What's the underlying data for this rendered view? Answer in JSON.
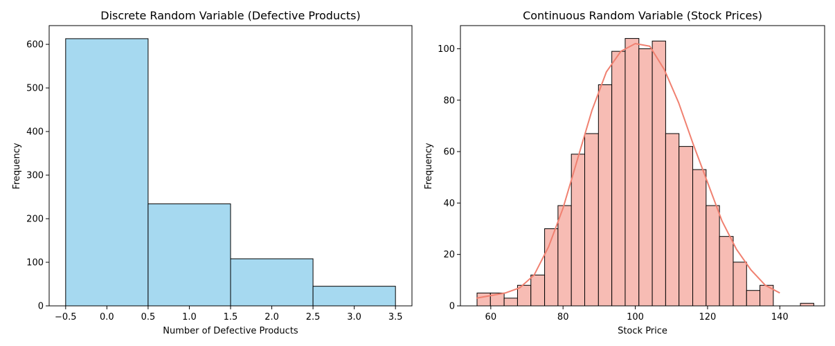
{
  "chart_data": [
    {
      "type": "bar",
      "title": "Discrete Random Variable (Defective Products)",
      "xlabel": "Number of Defective Products",
      "ylabel": "Frequency",
      "xlim": [
        -0.7,
        3.7
      ],
      "ylim": [
        0,
        643
      ],
      "x_ticks": [
        -0.5,
        0.0,
        0.5,
        1.0,
        1.5,
        2.0,
        2.5,
        3.0,
        3.5
      ],
      "x_tick_labels": [
        "−0.5",
        "0.0",
        "0.5",
        "1.0",
        "1.5",
        "2.0",
        "2.5",
        "3.0",
        "3.5"
      ],
      "y_ticks": [
        0,
        100,
        200,
        300,
        400,
        500,
        600
      ],
      "y_tick_labels": [
        "0",
        "100",
        "200",
        "300",
        "400",
        "500",
        "600"
      ],
      "bins": [
        {
          "left": -0.5,
          "right": 0.5,
          "value": 613
        },
        {
          "left": 0.5,
          "right": 1.5,
          "value": 234
        },
        {
          "left": 1.5,
          "right": 2.5,
          "value": 108
        },
        {
          "left": 2.5,
          "right": 3.5,
          "value": 45
        }
      ],
      "bar_color": "#a6d9f0",
      "edge_color": "#000000"
    },
    {
      "type": "bar",
      "title": "Continuous Random Variable (Stock Prices)",
      "xlabel": "Stock Price",
      "ylabel": "Frequency",
      "xlim": [
        51.6,
        152.4
      ],
      "ylim": [
        0,
        109
      ],
      "x_ticks": [
        60,
        80,
        100,
        120,
        140
      ],
      "x_tick_labels": [
        "60",
        "80",
        "100",
        "120",
        "140"
      ],
      "y_ticks": [
        0,
        20,
        40,
        60,
        80,
        100
      ],
      "y_tick_labels": [
        "0",
        "20",
        "40",
        "60",
        "80",
        "100"
      ],
      "bins": [
        {
          "left": 56.2,
          "right": 59.9,
          "value": 5
        },
        {
          "left": 59.9,
          "right": 63.7,
          "value": 5
        },
        {
          "left": 63.7,
          "right": 67.4,
          "value": 3
        },
        {
          "left": 67.4,
          "right": 71.1,
          "value": 8
        },
        {
          "left": 71.1,
          "right": 74.9,
          "value": 12
        },
        {
          "left": 74.9,
          "right": 78.6,
          "value": 30
        },
        {
          "left": 78.6,
          "right": 82.3,
          "value": 39
        },
        {
          "left": 82.3,
          "right": 86.0,
          "value": 59
        },
        {
          "left": 86.0,
          "right": 89.8,
          "value": 67
        },
        {
          "left": 89.8,
          "right": 93.5,
          "value": 86
        },
        {
          "left": 93.5,
          "right": 97.2,
          "value": 99
        },
        {
          "left": 97.2,
          "right": 101.0,
          "value": 104
        },
        {
          "left": 101.0,
          "right": 104.7,
          "value": 100
        },
        {
          "left": 104.7,
          "right": 108.4,
          "value": 103
        },
        {
          "left": 108.4,
          "right": 112.1,
          "value": 67
        },
        {
          "left": 112.1,
          "right": 115.9,
          "value": 62
        },
        {
          "left": 115.9,
          "right": 119.6,
          "value": 53
        },
        {
          "left": 119.6,
          "right": 123.3,
          "value": 39
        },
        {
          "left": 123.3,
          "right": 127.1,
          "value": 27
        },
        {
          "left": 127.1,
          "right": 130.8,
          "value": 17
        },
        {
          "left": 130.8,
          "right": 134.5,
          "value": 6
        },
        {
          "left": 134.5,
          "right": 138.2,
          "value": 8
        },
        {
          "left": 138.2,
          "right": 142.0,
          "value": 0
        },
        {
          "left": 142.0,
          "right": 145.7,
          "value": 0
        },
        {
          "left": 145.7,
          "right": 149.4,
          "value": 1
        }
      ],
      "kde": {
        "x": [
          56,
          60,
          64,
          68,
          72,
          76,
          80,
          84,
          88,
          92,
          96,
          100,
          102,
          104,
          108,
          112,
          116,
          120,
          124,
          128,
          132,
          136,
          140
        ],
        "y": [
          3,
          4,
          5,
          7,
          12,
          23,
          38,
          57,
          76,
          91,
          99,
          102,
          101.5,
          101,
          92,
          79,
          63,
          48,
          33,
          22,
          14,
          8,
          5
        ]
      },
      "bar_color": "#f7bcb4",
      "edge_color": "#000000",
      "kde_color": "#f08070"
    }
  ]
}
